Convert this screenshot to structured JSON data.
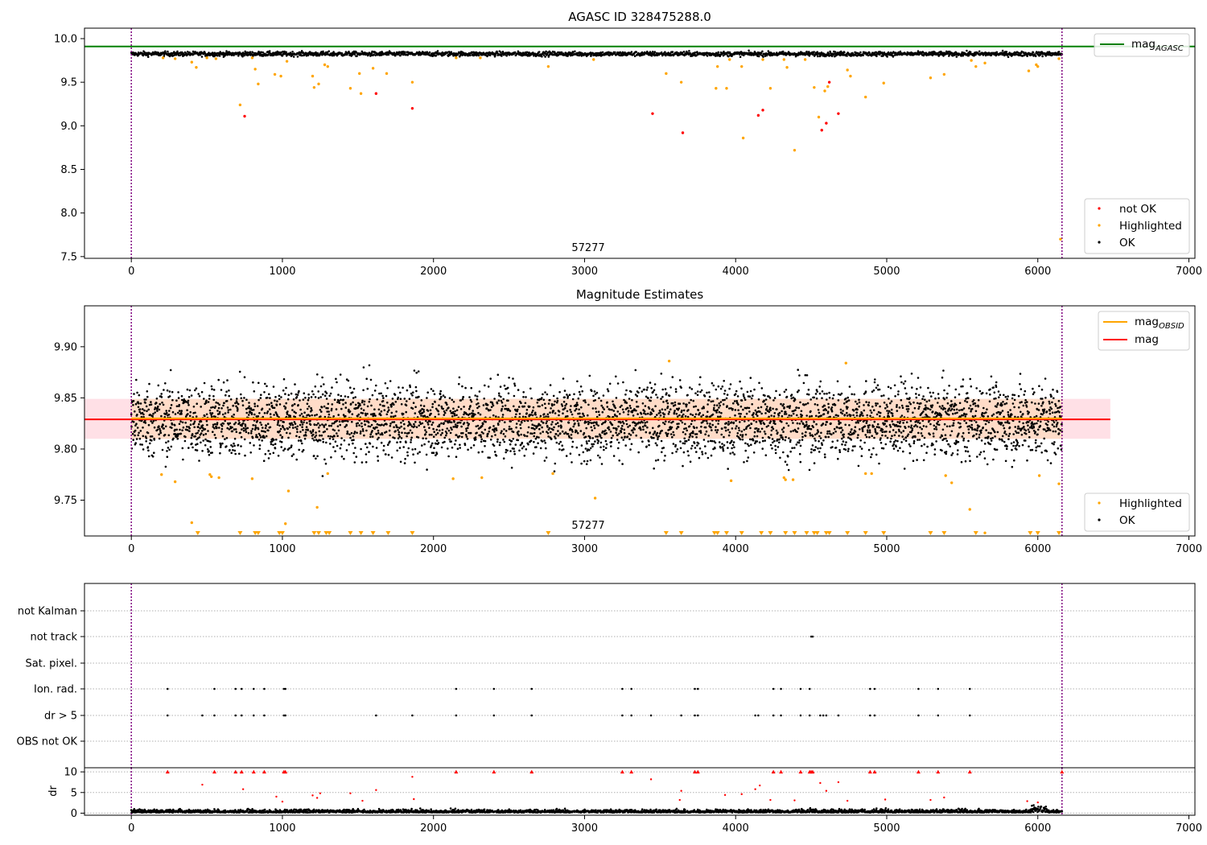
{
  "chart_data": [
    {
      "type": "scatter",
      "title": "AGASC ID 328475288.0",
      "xlim": [
        -310,
        7040
      ],
      "ylim": [
        7.48,
        10.12
      ],
      "xticks": [
        0,
        1000,
        2000,
        3000,
        4000,
        5000,
        6000,
        7000
      ],
      "yticks": [
        7.5,
        8.0,
        8.5,
        9.0,
        9.5,
        10.0
      ],
      "ytick_labels": [
        "7.5",
        "8.0",
        "8.5",
        "9.0",
        "9.5",
        "10.0"
      ],
      "vlines": [
        0,
        6160
      ],
      "obsid_label": "57277",
      "obsid_label_x": 3070,
      "hline": {
        "name": "mag",
        "subscript": "AGASC",
        "y": 9.91,
        "color": "#008000"
      },
      "ok_band": {
        "x": [
          0,
          6160
        ],
        "center": 9.825,
        "spread": 0.013
      },
      "series": [
        {
          "name": "not OK",
          "color": "#ff0000",
          "points": [
            [
              750,
              9.11
            ],
            [
              1620,
              9.37
            ],
            [
              1860,
              9.2
            ],
            [
              3450,
              9.14
            ],
            [
              3650,
              8.92
            ],
            [
              4150,
              9.12
            ],
            [
              4180,
              9.18
            ],
            [
              4570,
              8.95
            ],
            [
              4600,
              9.03
            ],
            [
              4620,
              9.5
            ],
            [
              4680,
              9.14
            ]
          ]
        },
        {
          "name": "Highlighted",
          "color": "#ffa500",
          "points": [
            [
              210,
              9.78
            ],
            [
              290,
              9.77
            ],
            [
              400,
              9.73
            ],
            [
              430,
              9.67
            ],
            [
              500,
              9.78
            ],
            [
              560,
              9.77
            ],
            [
              720,
              9.24
            ],
            [
              800,
              9.78
            ],
            [
              820,
              9.65
            ],
            [
              840,
              9.48
            ],
            [
              950,
              9.59
            ],
            [
              990,
              9.57
            ],
            [
              1030,
              9.74
            ],
            [
              1200,
              9.57
            ],
            [
              1210,
              9.44
            ],
            [
              1240,
              9.48
            ],
            [
              1280,
              9.7
            ],
            [
              1300,
              9.68
            ],
            [
              1450,
              9.43
            ],
            [
              1510,
              9.6
            ],
            [
              1520,
              9.37
            ],
            [
              1600,
              9.66
            ],
            [
              1690,
              9.6
            ],
            [
              1860,
              9.5
            ],
            [
              2150,
              9.78
            ],
            [
              2310,
              9.78
            ],
            [
              2760,
              9.68
            ],
            [
              3060,
              9.76
            ],
            [
              3540,
              9.6
            ],
            [
              3640,
              9.5
            ],
            [
              3870,
              9.43
            ],
            [
              3880,
              9.68
            ],
            [
              3940,
              9.43
            ],
            [
              3960,
              9.76
            ],
            [
              4040,
              9.68
            ],
            [
              4050,
              8.86
            ],
            [
              4180,
              9.76
            ],
            [
              4230,
              9.43
            ],
            [
              4320,
              9.76
            ],
            [
              4340,
              9.67
            ],
            [
              4390,
              8.72
            ],
            [
              4460,
              9.76
            ],
            [
              4520,
              9.44
            ],
            [
              4550,
              9.1
            ],
            [
              4590,
              9.4
            ],
            [
              4610,
              9.45
            ],
            [
              4740,
              9.64
            ],
            [
              4760,
              9.57
            ],
            [
              4860,
              9.33
            ],
            [
              4980,
              9.49
            ],
            [
              5290,
              9.55
            ],
            [
              5380,
              9.59
            ],
            [
              5560,
              9.75
            ],
            [
              5590,
              9.68
            ],
            [
              5650,
              9.72
            ],
            [
              5940,
              9.63
            ],
            [
              5990,
              9.7
            ],
            [
              6000,
              9.68
            ],
            [
              6140,
              9.77
            ],
            [
              6150,
              7.7
            ]
          ]
        }
      ],
      "legend": [
        {
          "label": "not OK",
          "color": "#ff0000"
        },
        {
          "label": "Highlighted",
          "color": "#ffa500"
        },
        {
          "label": "OK",
          "color": "#000000"
        }
      ]
    },
    {
      "type": "scatter",
      "title": "Magnitude Estimates",
      "xlim": [
        -310,
        7040
      ],
      "ylim": [
        9.715,
        9.94
      ],
      "xticks": [
        0,
        1000,
        2000,
        3000,
        4000,
        5000,
        6000,
        7000
      ],
      "yticks": [
        9.75,
        9.8,
        9.85,
        9.9
      ],
      "ytick_labels": [
        "9.75",
        "9.80",
        "9.85",
        "9.90"
      ],
      "vlines": [
        0,
        6160
      ],
      "obsid_label": "57277",
      "obsid_label_x": 3070,
      "band": {
        "x": [
          0,
          6160
        ],
        "y": [
          9.81,
          9.849
        ],
        "color": "#ffdcc8"
      },
      "band_full": {
        "x": [
          -310,
          6480
        ],
        "y": [
          9.81,
          9.849
        ],
        "color": "#ffe0e6"
      },
      "hlines": [
        {
          "name": "mag",
          "subscript": "OBSID",
          "x": [
            0,
            6160
          ],
          "y": 9.83,
          "color": "#ffa500"
        },
        {
          "name": "mag",
          "x": [
            -310,
            6480
          ],
          "y": 9.829,
          "color": "#ff0000"
        }
      ],
      "ok_band": {
        "x": [
          0,
          6160
        ],
        "center": 9.828,
        "spread": 0.018
      },
      "series": [
        {
          "name": "Highlighted",
          "color": "#ffa500",
          "points": [
            [
              200,
              9.775
            ],
            [
              290,
              9.768
            ],
            [
              400,
              9.728
            ],
            [
              520,
              9.775
            ],
            [
              530,
              9.773
            ],
            [
              580,
              9.772
            ],
            [
              800,
              9.771
            ],
            [
              1040,
              9.759
            ],
            [
              1020,
              9.727
            ],
            [
              1230,
              9.743
            ],
            [
              1300,
              9.776
            ],
            [
              2130,
              9.771
            ],
            [
              2320,
              9.772
            ],
            [
              2790,
              9.776
            ],
            [
              3070,
              9.752
            ],
            [
              3560,
              9.886
            ],
            [
              3970,
              9.769
            ],
            [
              4320,
              9.772
            ],
            [
              4330,
              9.77
            ],
            [
              4380,
              9.77
            ],
            [
              4730,
              9.884
            ],
            [
              4860,
              9.776
            ],
            [
              4900,
              9.776
            ],
            [
              5390,
              9.774
            ],
            [
              5430,
              9.767
            ],
            [
              5550,
              9.741
            ],
            [
              5650,
              9.718
            ],
            [
              6010,
              9.774
            ],
            [
              6140,
              9.766
            ]
          ]
        }
      ],
      "arrow_x": [
        440,
        720,
        820,
        840,
        980,
        1000,
        1210,
        1240,
        1290,
        1310,
        1450,
        1520,
        1600,
        1700,
        1860,
        2760,
        3540,
        3640,
        3860,
        3880,
        3940,
        4040,
        4170,
        4230,
        4330,
        4390,
        4470,
        4520,
        4540,
        4600,
        4620,
        4740,
        4860,
        4980,
        5290,
        5380,
        5590,
        5950,
        6000,
        6140
      ],
      "legend": [
        {
          "label": "mag",
          "subscript": "OBSID",
          "color": "#ffa500"
        },
        {
          "label": "mag",
          "subscript": "",
          "color": "#ff0000"
        }
      ],
      "legend2": [
        {
          "label": "Highlighted",
          "color": "#ffa500"
        },
        {
          "label": "OK",
          "color": "#000000"
        }
      ]
    },
    {
      "type": "scatter",
      "title": "",
      "xlim": [
        -310,
        7040
      ],
      "categories": [
        "not Kalman",
        "not track",
        "Sat. pixel.",
        "Ion. rad.",
        "dr > 5",
        "OBS not OK"
      ],
      "vlines": [
        0,
        6160
      ],
      "flag_points": {
        "not track": [
          4500,
          4510
        ],
        "Ion. rad.": [
          240,
          550,
          690,
          730,
          810,
          880,
          1010,
          1020,
          2150,
          2400,
          2650,
          3250,
          3310,
          3730,
          3750,
          4250,
          4300,
          4430,
          4490,
          4890,
          4920,
          5210,
          5340,
          5550
        ],
        "dr > 5": [
          240,
          470,
          550,
          690,
          730,
          810,
          880,
          1010,
          1020,
          1620,
          1860,
          2150,
          2400,
          2650,
          3250,
          3310,
          3440,
          3640,
          3730,
          3750,
          4130,
          4150,
          4250,
          4300,
          4430,
          4490,
          4560,
          4580,
          4600,
          4680,
          4890,
          4920,
          5210,
          5340,
          5550
        ]
      }
    },
    {
      "type": "scatter",
      "title": "",
      "ylabel": "dr",
      "xlim": [
        -310,
        7040
      ],
      "ylim": [
        -0.5,
        11
      ],
      "xticks": [
        0,
        1000,
        2000,
        3000,
        4000,
        5000,
        6000,
        7000
      ],
      "yticks": [
        0,
        5,
        10
      ],
      "ytick_labels": [
        "0",
        "5",
        "10"
      ],
      "vlines": [
        0,
        6160
      ],
      "clip_x": [
        240,
        550,
        690,
        730,
        810,
        880,
        1010,
        1020,
        2150,
        2400,
        2650,
        3250,
        3310,
        3730,
        3750,
        4250,
        4300,
        4430,
        4490,
        4500,
        4510,
        4890,
        4920,
        5210,
        5340,
        5550,
        6160
      ],
      "red_points": [
        [
          470,
          6.9
        ],
        [
          740,
          5.8
        ],
        [
          960,
          4.0
        ],
        [
          1000,
          2.8
        ],
        [
          1200,
          4.3
        ],
        [
          1230,
          3.7
        ],
        [
          1250,
          4.8
        ],
        [
          1450,
          4.8
        ],
        [
          1530,
          3.0
        ],
        [
          1620,
          5.6
        ],
        [
          1860,
          8.8
        ],
        [
          1870,
          3.4
        ],
        [
          3440,
          8.2
        ],
        [
          3640,
          5.4
        ],
        [
          3630,
          3.2
        ],
        [
          3930,
          4.4
        ],
        [
          4040,
          4.6
        ],
        [
          4130,
          5.8
        ],
        [
          4160,
          6.7
        ],
        [
          4230,
          3.2
        ],
        [
          4390,
          3.1
        ],
        [
          4560,
          7.3
        ],
        [
          4600,
          5.4
        ],
        [
          4680,
          7.5
        ],
        [
          4740,
          3.0
        ],
        [
          4990,
          3.3
        ],
        [
          5290,
          3.2
        ],
        [
          5380,
          3.8
        ],
        [
          5930,
          2.9
        ],
        [
          6000,
          2.6
        ]
      ]
    }
  ]
}
